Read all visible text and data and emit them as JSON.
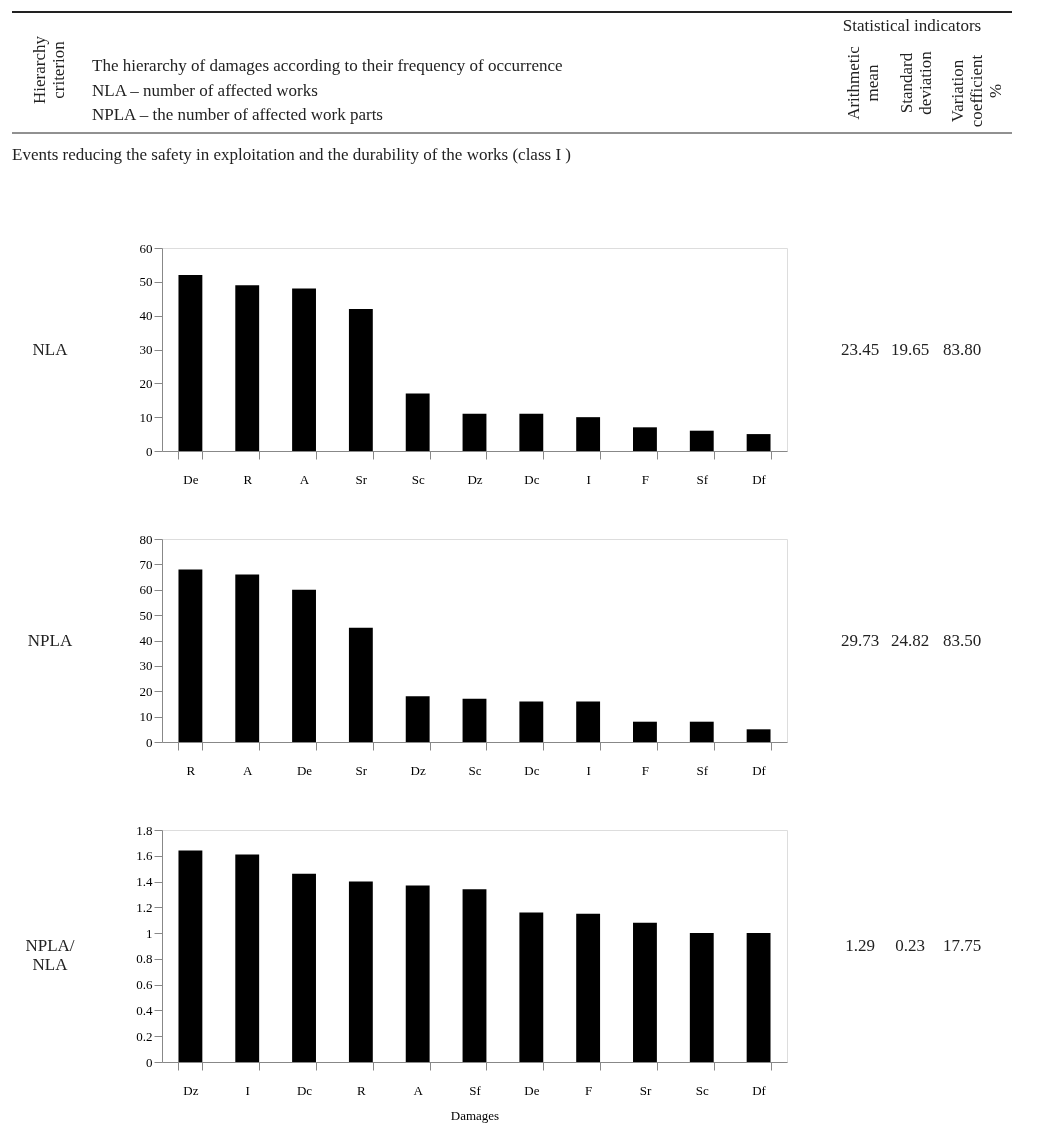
{
  "chart_data": [
    {
      "type": "bar",
      "title": "Events reducing the safety in exploitation and the durability of the works (class I )",
      "ylabel": "NLA",
      "categories": [
        "De",
        "R",
        "A",
        "Sr",
        "Sc",
        "Dz",
        "Dc",
        "I",
        "F",
        "Sf",
        "Df"
      ],
      "values": [
        52,
        49,
        48,
        42,
        17,
        11,
        11,
        10,
        7,
        6,
        5
      ],
      "color": "#000000",
      "ylim": [
        0,
        60
      ],
      "yticks": [
        0,
        10,
        20,
        30,
        40,
        50,
        60
      ],
      "grid": false,
      "annotations": [
        "Hierarchy criterion",
        "The hierarchy of damages according to their frequency of occurrence",
        "NLA – number of affected works",
        "NPLA – the number of affected work parts",
        "Statistical indicators",
        "Arithmetic mean",
        "Standard deviation",
        "Variation coefficient %",
        "23.45",
        "19.65",
        "83.80"
      ]
    },
    {
      "type": "bar",
      "ylabel": "NPLA",
      "categories": [
        "R",
        "A",
        "De",
        "Sr",
        "Dz",
        "Sc",
        "Dc",
        "I",
        "F",
        "Sf",
        "Df"
      ],
      "values": [
        68,
        66,
        60,
        45,
        18,
        17,
        16,
        16,
        8,
        8,
        5
      ],
      "color": "#000000",
      "ylim": [
        0,
        80
      ],
      "yticks": [
        0,
        10,
        20,
        30,
        40,
        50,
        60,
        70,
        80
      ],
      "grid": false,
      "annotations": [
        "29.73",
        "24.82",
        "83.50"
      ]
    },
    {
      "type": "bar",
      "ylabel": "NPLA/ NLA",
      "xlabel": "Damages",
      "categories": [
        "Dz",
        "I",
        "Dc",
        "R",
        "A",
        "Sf",
        "De",
        "F",
        "Sr",
        "Sc",
        "Df"
      ],
      "values": [
        1.64,
        1.61,
        1.46,
        1.4,
        1.37,
        1.34,
        1.16,
        1.15,
        1.08,
        1.0,
        1.0
      ],
      "color": "#000000",
      "ylim": [
        0,
        1.8
      ],
      "yticks": [
        0,
        0.2,
        0.4,
        0.6,
        0.8,
        1,
        1.2,
        1.4,
        1.6,
        1.8
      ],
      "grid": false,
      "annotations": [
        "1.29",
        "0.23",
        "17.75"
      ]
    }
  ]
}
